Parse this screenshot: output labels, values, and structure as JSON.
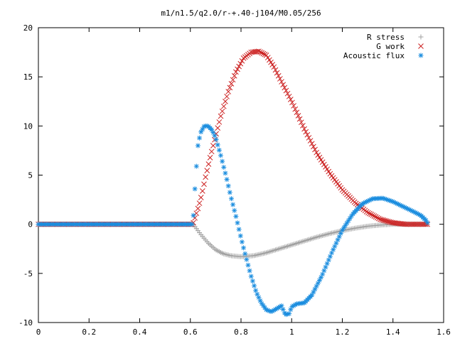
{
  "chart_data": {
    "type": "scatter",
    "title": "m1/n1.5/q2.0/r-+.40-j104/M0.05/256",
    "xlabel": "",
    "ylabel": "",
    "xlim": [
      0,
      1.6
    ],
    "ylim": [
      -10,
      20
    ],
    "x_ticks": [
      0,
      0.2,
      0.4,
      0.6,
      0.8,
      1,
      1.2,
      1.4,
      1.6
    ],
    "y_ticks": [
      -10,
      -5,
      0,
      5,
      10,
      15,
      20
    ],
    "grid": false,
    "legend_position": "top-right",
    "series": [
      {
        "name": "R stress",
        "marker": "+",
        "color": "#a0a0a0",
        "points": [
          [
            0,
            0
          ],
          [
            0.3,
            0
          ],
          [
            0.61,
            0
          ],
          [
            0.62,
            -0.3
          ],
          [
            0.64,
            -1.0
          ],
          [
            0.67,
            -1.9
          ],
          [
            0.7,
            -2.6
          ],
          [
            0.73,
            -3.0
          ],
          [
            0.76,
            -3.2
          ],
          [
            0.8,
            -3.3
          ],
          [
            0.85,
            -3.2
          ],
          [
            0.9,
            -2.9
          ],
          [
            0.95,
            -2.5
          ],
          [
            1.0,
            -2.1
          ],
          [
            1.05,
            -1.7
          ],
          [
            1.1,
            -1.3
          ],
          [
            1.15,
            -0.95
          ],
          [
            1.2,
            -0.65
          ],
          [
            1.25,
            -0.4
          ],
          [
            1.3,
            -0.2
          ],
          [
            1.35,
            -0.08
          ],
          [
            1.4,
            0
          ],
          [
            1.45,
            0
          ],
          [
            1.5,
            0
          ],
          [
            1.54,
            0
          ]
        ]
      },
      {
        "name": "G work",
        "marker": "x",
        "color": "#cc2222",
        "points": [
          [
            0,
            0
          ],
          [
            0.3,
            0
          ],
          [
            0.61,
            0
          ],
          [
            0.62,
            0.8
          ],
          [
            0.63,
            1.6
          ],
          [
            0.64,
            2.5
          ],
          [
            0.65,
            3.6
          ],
          [
            0.66,
            4.8
          ],
          [
            0.68,
            7.0
          ],
          [
            0.7,
            9.0
          ],
          [
            0.72,
            11.0
          ],
          [
            0.75,
            13.5
          ],
          [
            0.78,
            15.5
          ],
          [
            0.81,
            16.9
          ],
          [
            0.84,
            17.5
          ],
          [
            0.87,
            17.6
          ],
          [
            0.9,
            17.2
          ],
          [
            0.93,
            16.0
          ],
          [
            0.96,
            14.5
          ],
          [
            1.0,
            12.5
          ],
          [
            1.05,
            9.7
          ],
          [
            1.1,
            7.2
          ],
          [
            1.15,
            5.2
          ],
          [
            1.2,
            3.5
          ],
          [
            1.25,
            2.2
          ],
          [
            1.3,
            1.2
          ],
          [
            1.35,
            0.5
          ],
          [
            1.4,
            0.15
          ],
          [
            1.45,
            0
          ],
          [
            1.5,
            0
          ],
          [
            1.54,
            0
          ]
        ]
      },
      {
        "name": "Acoustic flux",
        "marker": "*",
        "color": "#1a8ddf",
        "points": [
          [
            0,
            0
          ],
          [
            0.3,
            0
          ],
          [
            0.61,
            0
          ],
          [
            0.62,
            4.5
          ],
          [
            0.63,
            8.0
          ],
          [
            0.64,
            9.3
          ],
          [
            0.655,
            10.0
          ],
          [
            0.67,
            10.0
          ],
          [
            0.685,
            9.6
          ],
          [
            0.7,
            8.8
          ],
          [
            0.72,
            7.0
          ],
          [
            0.74,
            5.0
          ],
          [
            0.76,
            2.8
          ],
          [
            0.78,
            0.8
          ],
          [
            0.8,
            -1.4
          ],
          [
            0.82,
            -3.4
          ],
          [
            0.84,
            -5.3
          ],
          [
            0.86,
            -6.9
          ],
          [
            0.88,
            -8.0
          ],
          [
            0.9,
            -8.7
          ],
          [
            0.92,
            -8.9
          ],
          [
            0.94,
            -8.6
          ],
          [
            0.96,
            -8.3
          ],
          [
            0.975,
            -9.2
          ],
          [
            0.99,
            -9.1
          ],
          [
            1.0,
            -8.4
          ],
          [
            1.02,
            -8.1
          ],
          [
            1.05,
            -8.0
          ],
          [
            1.08,
            -7.2
          ],
          [
            1.12,
            -5.2
          ],
          [
            1.16,
            -2.8
          ],
          [
            1.2,
            -0.6
          ],
          [
            1.24,
            1.0
          ],
          [
            1.28,
            2.1
          ],
          [
            1.32,
            2.6
          ],
          [
            1.36,
            2.65
          ],
          [
            1.4,
            2.3
          ],
          [
            1.44,
            1.8
          ],
          [
            1.48,
            1.3
          ],
          [
            1.51,
            0.9
          ],
          [
            1.53,
            0.4
          ],
          [
            1.54,
            0
          ]
        ]
      }
    ]
  }
}
